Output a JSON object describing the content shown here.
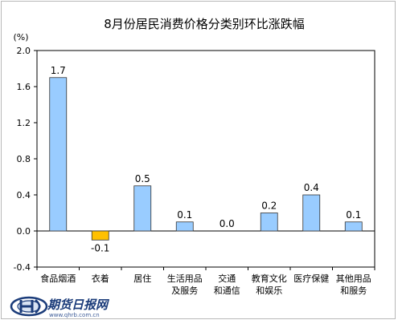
{
  "chart_data": {
    "type": "bar",
    "title": "8月份居民消费价格分类别环比涨跌幅",
    "unit_label": "(%)",
    "categories": [
      "食品烟酒",
      "衣着",
      "居住",
      "生活用品及服务",
      "交通和通信",
      "教育文化和娱乐",
      "医疗保健",
      "其他用品和服务"
    ],
    "category_lines": [
      [
        "食品烟酒"
      ],
      [
        "衣着"
      ],
      [
        "居住"
      ],
      [
        "生活用品",
        "及服务"
      ],
      [
        "交通",
        "和通信"
      ],
      [
        "教育文化",
        "和娱乐"
      ],
      [
        "医疗保健"
      ],
      [
        "其他用品",
        "和服务"
      ]
    ],
    "values": [
      1.7,
      -0.1,
      0.5,
      0.1,
      0.0,
      0.2,
      0.4,
      0.1
    ],
    "value_labels": [
      "1.7",
      "-0.1",
      "0.5",
      "0.1",
      "0.0",
      "0.2",
      "0.4",
      "0.1"
    ],
    "ylim": [
      -0.4,
      2.0
    ],
    "yticks": [
      "2.0",
      "1.6",
      "1.2",
      "0.8",
      "0.4",
      "0.0",
      "-0.4"
    ],
    "ytick_values": [
      2.0,
      1.6,
      1.2,
      0.8,
      0.4,
      0.0,
      -0.4
    ],
    "colors": {
      "positive": "#99ccff",
      "negative": "#ffc000",
      "bar_edge": "#333333"
    },
    "grid": false,
    "legend": "none"
  },
  "watermark": {
    "logo_icon": "qhrb-logo-icon",
    "text": "期货日报网",
    "url": "www.qhrb.com.cn"
  }
}
